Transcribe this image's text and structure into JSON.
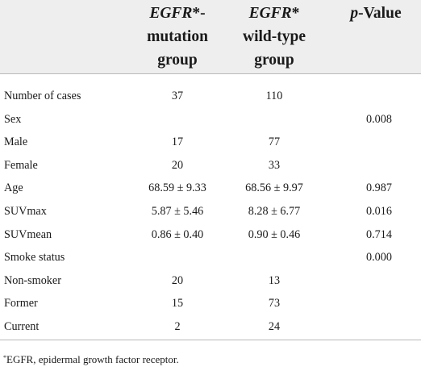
{
  "table": {
    "headers": {
      "mutation": {
        "gene": "EGFR",
        "suffix": "*-",
        "line2": "mutation",
        "line3": "group"
      },
      "wildtype": {
        "gene": "EGFR",
        "suffix": "*",
        "line2": "wild-type",
        "line3": "group"
      },
      "pvalue": {
        "italic": "p",
        "rest": "-Value"
      }
    },
    "rows": [
      {
        "label": "Number of cases",
        "mutation": "37",
        "wildtype": "110",
        "pvalue": ""
      },
      {
        "label": "Sex",
        "mutation": "",
        "wildtype": "",
        "pvalue": "0.008"
      },
      {
        "label": "Male",
        "mutation": "17",
        "wildtype": "77",
        "pvalue": ""
      },
      {
        "label": "Female",
        "mutation": "20",
        "wildtype": "33",
        "pvalue": ""
      },
      {
        "label": "Age",
        "mutation": "68.59 ± 9.33",
        "wildtype": "68.56 ± 9.97",
        "pvalue": "0.987"
      },
      {
        "label": "SUVmax",
        "mutation": "5.87 ± 5.46",
        "wildtype": "8.28 ± 6.77",
        "pvalue": "0.016"
      },
      {
        "label": "SUVmean",
        "mutation": "0.86 ± 0.40",
        "wildtype": "0.90 ± 0.46",
        "pvalue": "0.714"
      },
      {
        "label": "Smoke status",
        "mutation": "",
        "wildtype": "",
        "pvalue": "0.000"
      },
      {
        "label": "Non-smoker",
        "mutation": "20",
        "wildtype": "13",
        "pvalue": ""
      },
      {
        "label": "Former",
        "mutation": "15",
        "wildtype": "73",
        "pvalue": ""
      },
      {
        "label": "Current",
        "mutation": "2",
        "wildtype": "24",
        "pvalue": ""
      }
    ]
  },
  "footnote": {
    "marker": "*",
    "text": "EGFR, epidermal growth factor receptor."
  }
}
